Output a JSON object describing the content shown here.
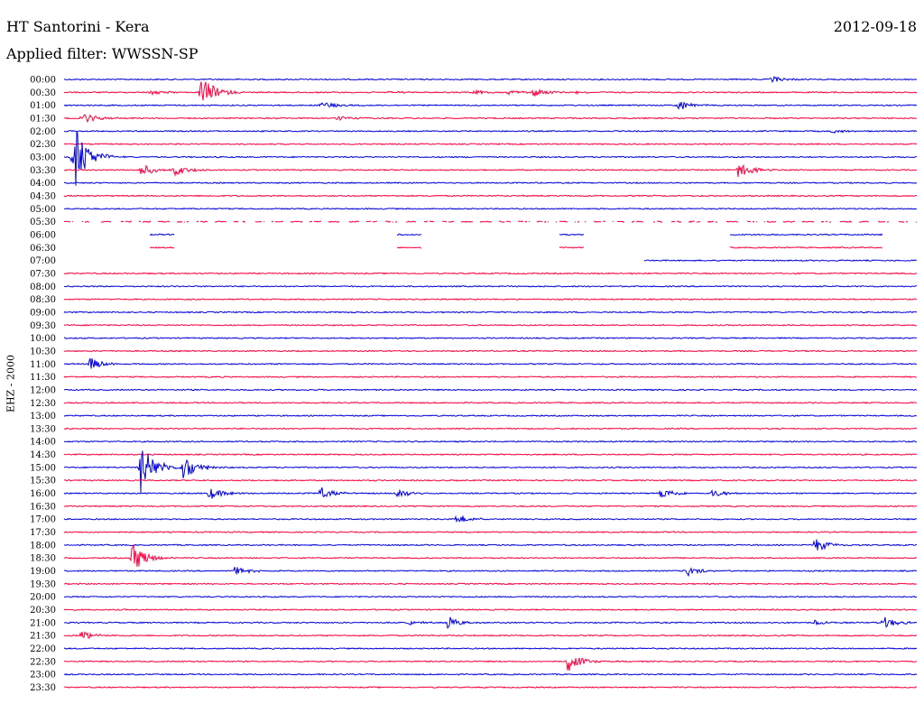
{
  "header": {
    "title": "HT Santorini - Kera",
    "date": "2012-09-18",
    "filter": "Applied filter: WWSSN-SP"
  },
  "colors": {
    "even_hour_trace": "#0000dd",
    "half_hour_trace": "#ff0040"
  },
  "chart_data": {
    "type": "line",
    "ylabel": "EHZ - 2000",
    "rows": [
      "00:00",
      "00:30",
      "01:00",
      "01:30",
      "02:00",
      "02:30",
      "03:00",
      "03:30",
      "04:00",
      "04:30",
      "05:00",
      "05:30",
      "06:00",
      "06:30",
      "07:00",
      "07:30",
      "08:00",
      "08:30",
      "09:00",
      "09:30",
      "10:00",
      "10:30",
      "11:00",
      "11:30",
      "12:00",
      "12:30",
      "13:00",
      "13:30",
      "14:00",
      "14:30",
      "15:00",
      "15:30",
      "16:00",
      "16:30",
      "17:00",
      "17:30",
      "18:00",
      "18:30",
      "19:00",
      "19:30",
      "20:00",
      "20:30",
      "21:00",
      "21:30",
      "22:00",
      "22:30",
      "23:00",
      "23:30"
    ],
    "trace_colors": "alternating blue (on the hour) and red (half past)",
    "grid": false,
    "events": [
      {
        "row": "00:00",
        "t": 0.83,
        "amp": 0.3
      },
      {
        "row": "00:30",
        "t": 0.1,
        "amp": 0.3
      },
      {
        "row": "00:30",
        "t": 0.16,
        "amp": 1.6
      },
      {
        "row": "00:30",
        "t": 0.38,
        "amp": 0.15
      },
      {
        "row": "00:30",
        "t": 0.48,
        "amp": 0.2
      },
      {
        "row": "00:30",
        "t": 0.52,
        "amp": 0.3
      },
      {
        "row": "00:30",
        "t": 0.55,
        "amp": 0.5
      },
      {
        "row": "00:30",
        "t": 0.6,
        "amp": 0.15
      },
      {
        "row": "01:00",
        "t": 0.3,
        "amp": 0.4
      },
      {
        "row": "01:00",
        "t": 0.72,
        "amp": 0.5
      },
      {
        "row": "01:30",
        "t": 0.02,
        "amp": 0.6
      },
      {
        "row": "01:30",
        "t": 0.32,
        "amp": 0.3
      },
      {
        "row": "02:00",
        "t": 0.9,
        "amp": 0.2
      },
      {
        "row": "03:00",
        "t": 0.01,
        "amp": 3.5
      },
      {
        "row": "03:30",
        "t": 0.09,
        "amp": 0.6
      },
      {
        "row": "03:30",
        "t": 0.13,
        "amp": 0.5
      },
      {
        "row": "03:30",
        "t": 0.79,
        "amp": 0.8
      },
      {
        "row": "11:00",
        "t": 0.03,
        "amp": 0.6
      },
      {
        "row": "15:00",
        "t": 0.09,
        "amp": 2.5
      },
      {
        "row": "15:00",
        "t": 0.14,
        "amp": 1.2
      },
      {
        "row": "16:00",
        "t": 0.17,
        "amp": 0.6
      },
      {
        "row": "16:00",
        "t": 0.3,
        "amp": 0.6
      },
      {
        "row": "16:00",
        "t": 0.39,
        "amp": 0.5
      },
      {
        "row": "16:00",
        "t": 0.7,
        "amp": 0.6
      },
      {
        "row": "16:00",
        "t": 0.76,
        "amp": 0.4
      },
      {
        "row": "17:00",
        "t": 0.46,
        "amp": 0.5
      },
      {
        "row": "18:00",
        "t": 0.88,
        "amp": 0.7
      },
      {
        "row": "18:30",
        "t": 0.08,
        "amp": 1.5
      },
      {
        "row": "19:00",
        "t": 0.2,
        "amp": 0.4
      },
      {
        "row": "19:00",
        "t": 0.73,
        "amp": 0.5
      },
      {
        "row": "21:00",
        "t": 0.4,
        "amp": 0.3
      },
      {
        "row": "21:00",
        "t": 0.45,
        "amp": 0.6
      },
      {
        "row": "21:00",
        "t": 0.88,
        "amp": 0.3
      },
      {
        "row": "21:00",
        "t": 0.96,
        "amp": 0.6
      },
      {
        "row": "21:30",
        "t": 0.02,
        "amp": 0.5
      },
      {
        "row": "22:30",
        "t": 0.59,
        "amp": 1.0
      }
    ],
    "gaps": [
      {
        "row": "05:30",
        "pattern": "dashed"
      },
      {
        "row": "06:00",
        "pattern": "sparse"
      },
      {
        "row": "06:30",
        "pattern": "sparse"
      },
      {
        "row": "07:00",
        "pattern": "partial"
      }
    ]
  }
}
